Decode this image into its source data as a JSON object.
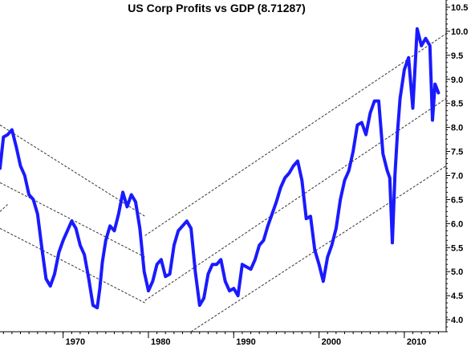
{
  "colors": {
    "background": "#ffffff",
    "series_line": "#1a1aff",
    "axis": "#000000",
    "channel_line": "#333333"
  },
  "chart_data": {
    "type": "line",
    "title": "US Corp Profits vs GDP (8.71287)",
    "xlabel": "",
    "ylabel": "",
    "xlim": [
      1962.6,
      2014.9
    ],
    "ylim": [
      3.75,
      10.65
    ],
    "x_ticks": [
      1970,
      1980,
      1990,
      2000,
      2010
    ],
    "x_tick_labels": [
      "1970",
      "1980",
      "1990",
      "2000",
      "2010"
    ],
    "y_ticks": [
      4.0,
      4.5,
      5.0,
      5.5,
      6.0,
      6.5,
      7.0,
      7.5,
      8.0,
      8.5,
      9.0,
      9.5,
      10.0,
      10.5
    ],
    "y_tick_labels": [
      "4.0",
      "4.5",
      "5.0",
      "5.5",
      "6.0",
      "6.5",
      "7.0",
      "7.5",
      "8.0",
      "8.5",
      "9.0",
      "9.5",
      "10.0",
      "10.5"
    ],
    "y_axis_position": "right",
    "grid": false,
    "legend": "none",
    "series": [
      {
        "x": [
          1962.6,
          1963.0,
          1963.5,
          1964.0,
          1964.5,
          1965.0,
          1965.5,
          1966.0,
          1966.5,
          1967.0,
          1967.5,
          1968.0,
          1968.5,
          1969.0,
          1969.5,
          1970.0,
          1970.5,
          1971.0,
          1971.5,
          1972.0,
          1972.5,
          1973.0,
          1973.5,
          1974.0,
          1974.3,
          1974.6,
          1975.0,
          1975.5,
          1976.0,
          1976.5,
          1977.0,
          1977.5,
          1978.0,
          1978.5,
          1979.0,
          1979.5,
          1980.0,
          1980.5,
          1981.0,
          1981.5,
          1982.0,
          1982.5,
          1983.0,
          1983.5,
          1984.0,
          1984.5,
          1985.0,
          1985.5,
          1986.0,
          1986.5,
          1987.0,
          1987.5,
          1988.0,
          1988.5,
          1989.0,
          1989.5,
          1990.0,
          1990.5,
          1991.0,
          1991.5,
          1992.0,
          1992.5,
          1993.0,
          1993.5,
          1994.0,
          1994.5,
          1995.0,
          1995.5,
          1996.0,
          1996.5,
          1997.0,
          1997.5,
          1998.0,
          1998.5,
          1999.0,
          1999.5,
          2000.0,
          2000.5,
          2001.0,
          2001.5,
          2002.0,
          2002.5,
          2003.0,
          2003.5,
          2004.0,
          2004.5,
          2005.0,
          2005.5,
          2006.0,
          2006.5,
          2007.0,
          2007.5,
          2008.0,
          2008.3,
          2008.6,
          2008.9,
          2009.2,
          2009.5,
          2010.0,
          2010.5,
          2011.0,
          2011.5,
          2012.0,
          2012.5,
          2013.0,
          2013.3,
          2013.6,
          2014.0
        ],
        "values": [
          7.15,
          7.8,
          7.85,
          7.95,
          7.6,
          7.2,
          7.0,
          6.6,
          6.5,
          6.2,
          5.5,
          4.85,
          4.7,
          4.95,
          5.4,
          5.65,
          5.85,
          6.05,
          5.9,
          5.55,
          5.35,
          4.85,
          4.3,
          4.25,
          4.65,
          5.2,
          5.65,
          5.95,
          5.85,
          6.2,
          6.65,
          6.35,
          6.6,
          6.45,
          5.9,
          5.0,
          4.6,
          4.8,
          5.15,
          5.25,
          4.9,
          4.95,
          5.55,
          5.85,
          5.95,
          6.05,
          5.9,
          5.0,
          4.3,
          4.45,
          4.95,
          5.15,
          5.15,
          5.25,
          4.8,
          4.6,
          4.65,
          4.5,
          5.15,
          5.1,
          5.05,
          5.25,
          5.55,
          5.65,
          5.95,
          6.2,
          6.45,
          6.75,
          6.95,
          7.05,
          7.2,
          7.3,
          6.9,
          6.1,
          6.15,
          5.45,
          5.15,
          4.8,
          5.3,
          5.55,
          5.9,
          6.5,
          6.9,
          7.1,
          7.5,
          8.05,
          8.1,
          7.85,
          8.3,
          8.55,
          8.55,
          7.45,
          7.1,
          6.95,
          5.6,
          7.0,
          7.9,
          8.6,
          9.2,
          9.45,
          8.4,
          10.05,
          9.7,
          9.85,
          9.7,
          8.15,
          8.9,
          8.72
        ]
      }
    ],
    "channels": [
      {
        "x": [
          1962.6,
          1979.6
        ],
        "values": [
          8.05,
          6.15
        ]
      },
      {
        "x": [
          1962.6,
          1979.6
        ],
        "values": [
          6.85,
          5.3
        ]
      },
      {
        "x": [
          1962.6,
          1979.6
        ],
        "values": [
          5.9,
          4.35
        ]
      },
      {
        "x": [
          1962.6,
          1963.5
        ],
        "values": [
          6.25,
          6.4
        ]
      },
      {
        "x": [
          1979.6,
          2014.9
        ],
        "values": [
          5.75,
          9.95
        ]
      },
      {
        "x": [
          1979.6,
          2014.9
        ],
        "values": [
          4.4,
          8.6
        ]
      },
      {
        "x": [
          1985.0,
          2014.9
        ],
        "values": [
          3.75,
          7.2
        ]
      }
    ]
  }
}
